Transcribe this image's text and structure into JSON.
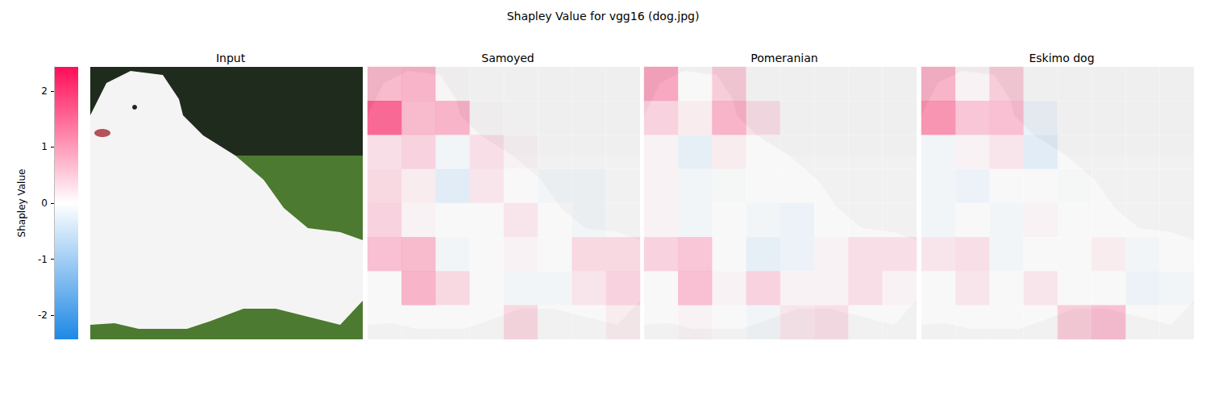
{
  "chart_data": {
    "type": "heatmap",
    "title": "Shapley Value for vgg16 (dog.jpg)",
    "image_title": "Input",
    "colorbar": {
      "label": "Shapley Value",
      "range": [
        -2.43,
        2.43
      ],
      "ticks": [
        -2,
        -1,
        0,
        1,
        2
      ],
      "colors": [
        "#1e88e5",
        "#ffffff",
        "#ff0d57"
      ]
    },
    "panels": [
      {
        "title": "Samoyed",
        "cells": [
          [
            1.0,
            1.1,
            0.05,
            0.0,
            0.0,
            0.0,
            0.0,
            0.0
          ],
          [
            2.3,
            1.0,
            1.1,
            0.05,
            0.0,
            0.0,
            0.0,
            0.0
          ],
          [
            0.4,
            0.6,
            -0.1,
            0.4,
            0.1,
            0.0,
            0.0,
            0.0
          ],
          [
            0.5,
            0.2,
            -0.4,
            0.3,
            0.0,
            -0.1,
            -0.1,
            0.0
          ],
          [
            0.6,
            0.1,
            0.0,
            0.0,
            0.3,
            0.0,
            -0.1,
            0.0
          ],
          [
            0.9,
            1.0,
            -0.1,
            0.0,
            0.1,
            0.0,
            0.5,
            0.5
          ],
          [
            0.0,
            1.1,
            0.5,
            0.0,
            -0.1,
            -0.1,
            0.3,
            0.6
          ],
          [
            0.0,
            0.0,
            0.0,
            0.0,
            0.5,
            0.0,
            0.0,
            0.2
          ]
        ]
      },
      {
        "title": "Pomeranian",
        "cells": [
          [
            1.3,
            0.0,
            0.7,
            0.0,
            0.0,
            0.0,
            0.0,
            0.0
          ],
          [
            0.6,
            0.2,
            1.1,
            0.4,
            0.0,
            0.0,
            0.0,
            0.0
          ],
          [
            0.1,
            -0.3,
            0.2,
            0.0,
            0.0,
            0.0,
            0.0,
            0.0
          ],
          [
            0.1,
            -0.1,
            -0.05,
            0.0,
            0.0,
            0.0,
            0.0,
            0.0
          ],
          [
            0.1,
            -0.1,
            0.0,
            -0.1,
            -0.2,
            0.0,
            0.0,
            0.0
          ],
          [
            0.6,
            0.8,
            0.0,
            -0.3,
            -0.2,
            0.1,
            0.4,
            0.4
          ],
          [
            0.0,
            0.9,
            0.1,
            0.6,
            0.1,
            0.1,
            0.4,
            0.1
          ],
          [
            0.0,
            0.1,
            0.0,
            -0.1,
            0.3,
            0.4,
            0.0,
            0.0
          ]
        ]
      },
      {
        "title": "Eskimo dog",
        "cells": [
          [
            1.1,
            0.1,
            0.7,
            0.0,
            0.0,
            0.0,
            0.0,
            0.0
          ],
          [
            1.6,
            0.8,
            0.9,
            -0.2,
            0.0,
            0.0,
            0.0,
            0.0
          ],
          [
            -0.1,
            0.1,
            0.3,
            -0.4,
            0.0,
            0.0,
            0.0,
            0.0
          ],
          [
            -0.1,
            -0.2,
            0.0,
            0.0,
            -0.05,
            0.0,
            0.0,
            0.0
          ],
          [
            -0.1,
            0.0,
            -0.1,
            0.1,
            0.0,
            0.0,
            0.0,
            0.0
          ],
          [
            0.3,
            0.4,
            -0.1,
            0.0,
            0.0,
            0.2,
            -0.1,
            0.0
          ],
          [
            0.0,
            0.3,
            0.0,
            0.3,
            0.0,
            0.0,
            -0.2,
            -0.1
          ],
          [
            0.0,
            0.0,
            0.0,
            0.0,
            0.7,
            0.9,
            0.0,
            0.0
          ]
        ]
      }
    ]
  }
}
